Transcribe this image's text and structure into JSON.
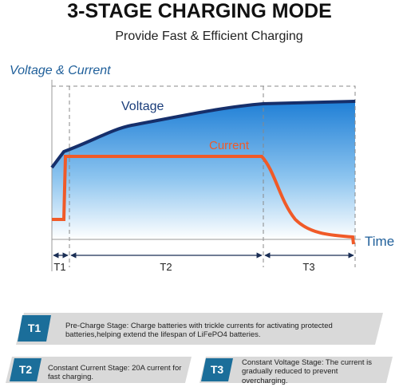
{
  "header": {
    "title": "3-STAGE CHARGING MODE",
    "subtitle": "Provide Fast & Efficient Charging"
  },
  "diagram": {
    "y_label": "Voltage & Current",
    "voltage_label": "Voltage",
    "current_label": "Current",
    "x_label": "Time"
  },
  "stages": [
    {
      "label": "T1",
      "description": "Pre-Charge Stage: Charge batteries with trickle currents for activating protected batteries,helping extend the lifespan of LiFePO4 batteries."
    },
    {
      "label": "T2",
      "description": "Constant Current Stage: 20A current for fast charging."
    },
    {
      "label": "T3",
      "description": "Constant Voltage Stage: The current is gradually reduced to prevent overcharging."
    }
  ]
}
